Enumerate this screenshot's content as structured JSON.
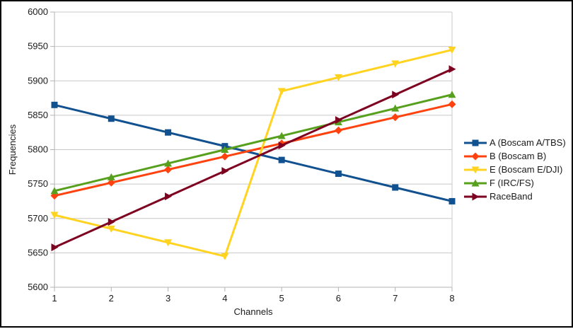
{
  "figure": {
    "background": "#ffffff",
    "border_color": "#000000",
    "grid_color": "#c8c8c8",
    "axis_color": "#b3b3b3",
    "text_color": "#1a1a1a"
  },
  "chart_data": {
    "type": "line",
    "title": "",
    "xlabel": "Channels",
    "ylabel": "Frequencies",
    "x": [
      1,
      2,
      3,
      4,
      5,
      6,
      7,
      8
    ],
    "xticks": [
      "1",
      "2",
      "3",
      "4",
      "5",
      "6",
      "7",
      "8"
    ],
    "yticks": [
      "5600",
      "5650",
      "5700",
      "5750",
      "5800",
      "5850",
      "5900",
      "5950",
      "6000"
    ],
    "ylim": [
      5600,
      6000
    ],
    "ytick_step": 50,
    "grid": "horizontal",
    "legend_position": "right",
    "series": [
      {
        "name": "A (Boscam A/TBS)",
        "color": "#11518F",
        "marker": "square",
        "values": [
          5865,
          5845,
          5825,
          5805,
          5785,
          5765,
          5745,
          5725
        ]
      },
      {
        "name": "B (Boscam B)",
        "color": "#FF420E",
        "marker": "diamond",
        "values": [
          5733,
          5752,
          5771,
          5790,
          5809,
          5828,
          5847,
          5866
        ]
      },
      {
        "name": "E (Boscam E/DJI)",
        "color": "#FFD320",
        "marker": "triangle-down",
        "values": [
          5705,
          5685,
          5665,
          5645,
          5885,
          5905,
          5925,
          5945
        ]
      },
      {
        "name": "F (IRC/FS)",
        "color": "#57A01E",
        "marker": "triangle-up",
        "values": [
          5740,
          5760,
          5780,
          5800,
          5820,
          5840,
          5860,
          5880
        ]
      },
      {
        "name": "RaceBand",
        "color": "#7E0021",
        "marker": "triangle-right",
        "values": [
          5658,
          5695,
          5732,
          5769,
          5806,
          5843,
          5880,
          5917
        ]
      }
    ]
  }
}
